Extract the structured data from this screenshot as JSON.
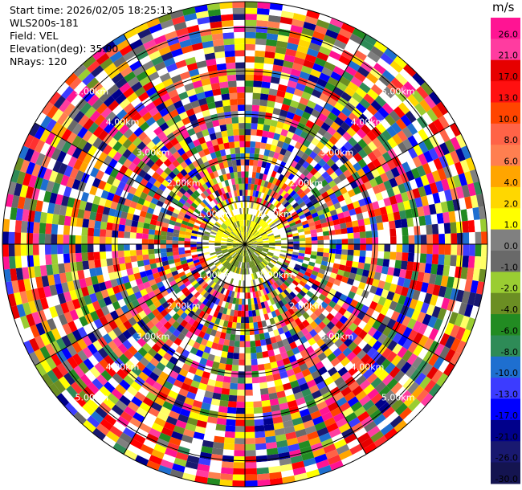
{
  "info": {
    "start_time": "Start time: 2026/02/05 18:25:13",
    "device": "WLS200s-181",
    "field": "Field: VEL",
    "elevation": "Elevation(deg): 35.00",
    "nrays": "NRays: 120"
  },
  "colorbar": {
    "unit": "m/s",
    "labels": [
      "26.0",
      "21.0",
      "17.0",
      "13.0",
      "10.0",
      "8.0",
      "6.0",
      "4.0",
      "2.0",
      "1.0",
      "0.0",
      "-1.0",
      "-2.0",
      "-4.0",
      "-6.0",
      "-8.0",
      "-10.0",
      "-13.0",
      "-17.0",
      "-21.0",
      "-26.0",
      "-30.0"
    ],
    "colors": [
      "#ff1493",
      "#ff3ca0",
      "#ff0000",
      "#e60000",
      "#ff3030",
      "#ff4500",
      "#ff6347",
      "#ff7f50",
      "#ffa500",
      "#ffd700",
      "#ffff00",
      "#ffff66",
      "#808080",
      "#696969",
      "#9acd32",
      "#6b8e23",
      "#228b22",
      "#2e8b57",
      "#1e6fd0",
      "#3c3cff",
      "#0000ff",
      "#00008b",
      "#191970"
    ]
  },
  "ring_labels": [
    "1.00km",
    "2.00km",
    "3.00km",
    "4.00km",
    "5.00km"
  ],
  "chart_data": {
    "type": "heatmap",
    "title": "",
    "field": "VEL",
    "elevation_deg": 35.0,
    "n_rays": 120,
    "range_rings_km": [
      1.0,
      2.0,
      3.0,
      4.0,
      5.0
    ],
    "colorbar_unit": "m/s",
    "colorbar_ticks": [
      26.0,
      21.0,
      17.0,
      13.0,
      10.0,
      8.0,
      6.0,
      4.0,
      2.0,
      1.0,
      0.0,
      -1.0,
      -2.0,
      -4.0,
      -6.0,
      -8.0,
      -10.0,
      -13.0,
      -17.0,
      -21.0,
      -26.0,
      -30.0
    ],
    "description_values": "Radial velocity PPI: near-zero (yellow/green) within ~1 km, noisy multicolor beyond"
  }
}
